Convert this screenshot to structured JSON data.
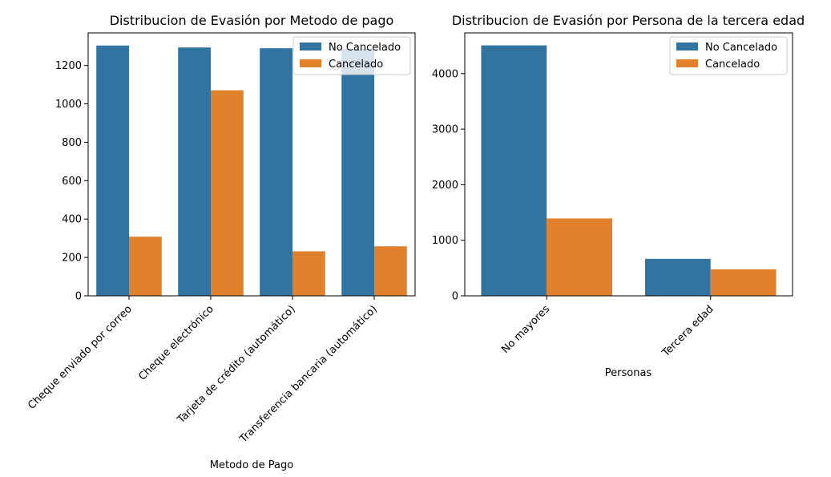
{
  "chart_data": [
    {
      "type": "bar",
      "title": "Distribucion de Evasión por Metodo de pago",
      "xlabel": "Metodo de Pago",
      "ylabel": "",
      "categories": [
        "Cheque enviado por correo",
        "Cheque electrónico",
        "Tarjeta de crédito (automático)",
        "Transferencia bancaria (automático)"
      ],
      "series": [
        {
          "name": "No Cancelado",
          "values": [
            1304,
            1294,
            1290,
            1286
          ],
          "color": "#3274a1"
        },
        {
          "name": "Cancelado",
          "values": [
            308,
            1071,
            232,
            258
          ],
          "color": "#e1812c"
        }
      ],
      "ylim": [
        0,
        1370
      ],
      "yticks": [
        0,
        200,
        400,
        600,
        800,
        1000,
        1200
      ],
      "grid": false,
      "legend": "top-right"
    },
    {
      "type": "bar",
      "title": "Distribucion de Evasión por Persona de la tercera edad",
      "xlabel": "Personas",
      "ylabel": "",
      "categories": [
        "No mayores",
        "Tercera edad"
      ],
      "series": [
        {
          "name": "No Cancelado",
          "values": [
            4508,
            666
          ],
          "color": "#3274a1"
        },
        {
          "name": "Cancelado",
          "values": [
            1393,
            476
          ],
          "color": "#e1812c"
        }
      ],
      "ylim": [
        0,
        4733
      ],
      "yticks": [
        0,
        1000,
        2000,
        3000,
        4000
      ],
      "grid": false,
      "legend": "top-right"
    }
  ]
}
